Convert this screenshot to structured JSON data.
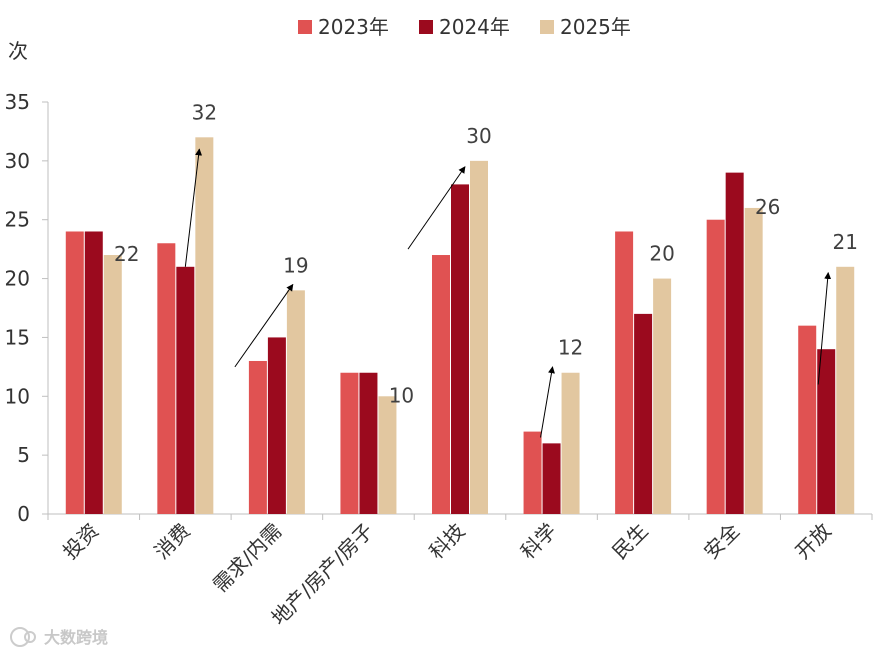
{
  "watermark": "大数跨境",
  "chart_data": {
    "type": "bar",
    "ylabel": "次",
    "ylim": [
      0,
      35
    ],
    "yticks": [
      0,
      5,
      10,
      15,
      20,
      25,
      30,
      35
    ],
    "categories": [
      "投资",
      "消费",
      "需求/内需",
      "地产/房产/房子",
      "科技",
      "科学",
      "民生",
      "安全",
      "开放"
    ],
    "series": [
      {
        "name": "2023年",
        "color": "#e05252",
        "values": [
          24,
          23,
          13,
          12,
          22,
          7,
          24,
          25,
          16
        ]
      },
      {
        "name": "2024年",
        "color": "#9b0a1e",
        "values": [
          24,
          21,
          15,
          12,
          28,
          6,
          17,
          29,
          14
        ]
      },
      {
        "name": "2025年",
        "color": "#e2c7a0",
        "values": [
          22,
          32,
          19,
          10,
          30,
          12,
          20,
          26,
          21
        ]
      }
    ],
    "data_labels": [
      {
        "category": "投资",
        "value": 22
      },
      {
        "category": "消费",
        "value": 32
      },
      {
        "category": "需求/内需",
        "value": 19
      },
      {
        "category": "地产/房产/房子",
        "value": 10
      },
      {
        "category": "科技",
        "value": 30
      },
      {
        "category": "科学",
        "value": 12
      },
      {
        "category": "民生",
        "value": 20
      },
      {
        "category": "安全",
        "value": 26
      },
      {
        "category": "开放",
        "value": 21
      }
    ],
    "trend_arrows": [
      {
        "category": "消费",
        "from": 21,
        "to": 31
      },
      {
        "category": "需求/内需",
        "from": 12.5,
        "to": 19.5
      },
      {
        "category": "科技",
        "from": 22.5,
        "to": 29.5
      },
      {
        "category": "科学",
        "from": 6.5,
        "to": 12.5
      },
      {
        "category": "开放",
        "from": 11,
        "to": 20.5
      }
    ],
    "legend_position": "top-center",
    "grid": false
  }
}
